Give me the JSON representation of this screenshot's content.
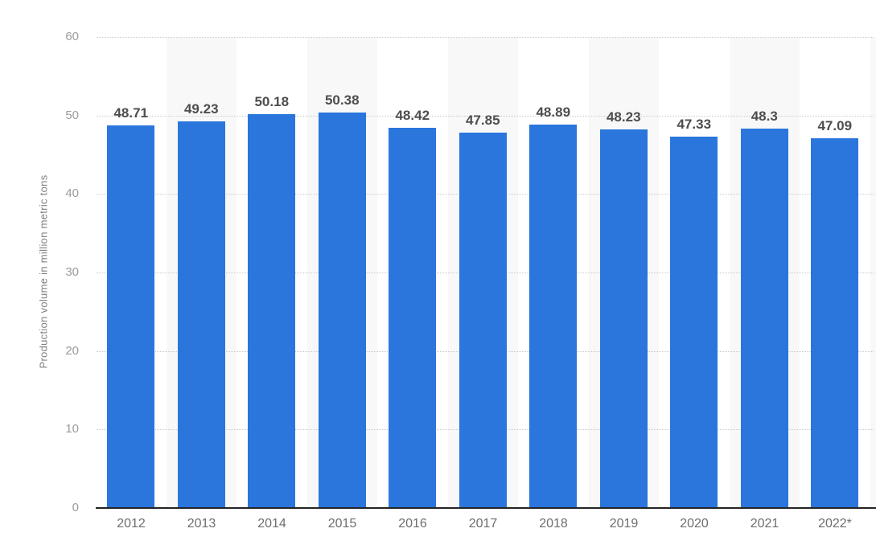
{
  "chart_data": {
    "type": "bar",
    "title": "",
    "xlabel": "",
    "ylabel": "Production volume in million metric tons",
    "categories": [
      "2012",
      "2013",
      "2014",
      "2015",
      "2016",
      "2017",
      "2018",
      "2019",
      "2020",
      "2021",
      "2022*"
    ],
    "values": [
      48.71,
      49.23,
      50.18,
      50.38,
      48.42,
      47.85,
      48.89,
      48.23,
      47.33,
      48.3,
      47.09
    ],
    "value_labels": [
      "48.71",
      "49.23",
      "50.18",
      "50.38",
      "48.42",
      "47.85",
      "48.89",
      "48.23",
      "47.33",
      "48.3",
      "47.09"
    ],
    "ylim": [
      0,
      60
    ],
    "yticks": [
      0,
      10,
      20,
      30,
      40,
      50,
      60
    ],
    "grid": "horizontal-dotted",
    "legend_position": "none",
    "background_stripes": "alternating light column bands behind every second category"
  },
  "colors": {
    "bar": "#2a76dd",
    "column_stripe": "#f8f8f8",
    "gridline": "#c9c9c9",
    "axis_line": "#242424",
    "y_tick_label": "#9b9b9b",
    "x_axis_label": "#6e6e6e",
    "value_label": "#4d4d4d",
    "axis_title": "#808080",
    "background": "#ffffff"
  }
}
